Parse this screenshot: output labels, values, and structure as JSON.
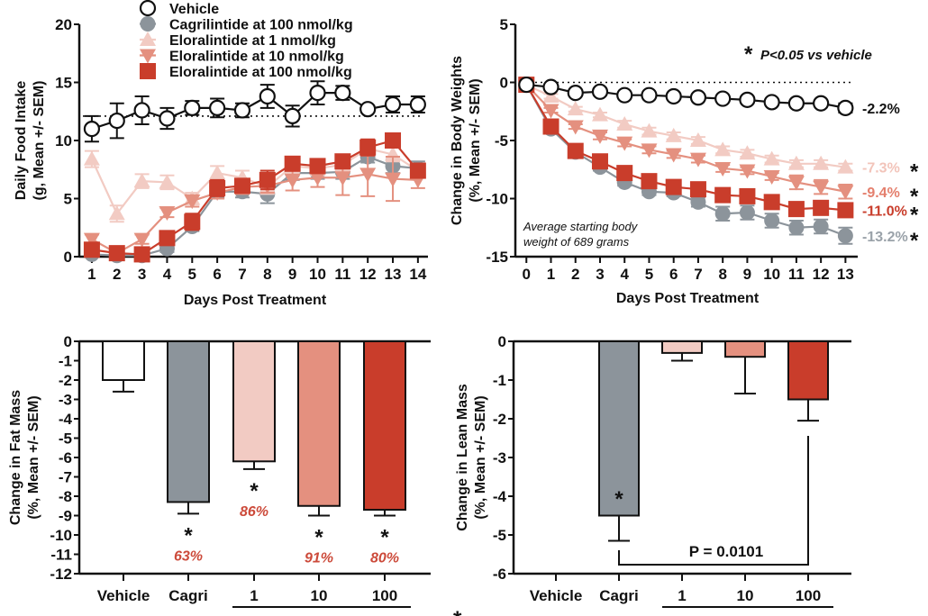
{
  "colors": {
    "vehicle": "#ffffff",
    "cagri": "#8c949b",
    "elo1": "#f2cbc3",
    "elo10": "#e4907f",
    "elo100": "#c93d2b",
    "axis": "#111111",
    "pct_text": "#cc4a3a"
  },
  "legend": [
    {
      "key": "vehicle",
      "label": "Vehicle",
      "marker": "circle-open"
    },
    {
      "key": "cagri",
      "label": "Cagrilintide at 100 nmol/kg",
      "marker": "circle"
    },
    {
      "key": "elo1",
      "label": "Eloralintide at 1 nmol/kg",
      "marker": "triangle-up"
    },
    {
      "key": "elo10",
      "label": "Eloralintide at 10 nmol/kg",
      "marker": "triangle-down"
    },
    {
      "key": "elo100",
      "label": "Eloralintide at 100 nmol/kg",
      "marker": "square"
    }
  ],
  "chart_data": [
    {
      "id": "food",
      "type": "line",
      "title": "",
      "xlabel": "Days Post Treatment",
      "ylabel_line1": "Daily Food Intake",
      "ylabel_line2": "(g, Mean +/- SEM)",
      "x": [
        1,
        2,
        3,
        4,
        5,
        6,
        7,
        8,
        9,
        10,
        11,
        12,
        13,
        14
      ],
      "xlim": [
        0.5,
        14.4
      ],
      "ylim": [
        0,
        20
      ],
      "yticks": [
        0,
        5,
        10,
        15,
        20
      ],
      "reference_line": 12.1,
      "series": [
        {
          "key": "cagri",
          "name": "Cagrilintide at 100 nmol/kg",
          "values": [
            0.2,
            0.1,
            0.1,
            0.7,
            2.6,
            5.6,
            5.6,
            5.4,
            7.2,
            7.2,
            7.3,
            8.6,
            7.8,
            7.6
          ],
          "err": [
            0.2,
            0.2,
            0.2,
            0.3,
            0.4,
            0.5,
            0.5,
            0.8,
            0.6,
            0.5,
            0.6,
            0.5,
            0.6,
            0.6
          ]
        },
        {
          "key": "elo1",
          "name": "Eloralintide at 1 nmol/kg",
          "values": [
            8.4,
            3.7,
            6.5,
            6.4,
            5.0,
            7.2,
            6.8,
            6.0,
            7.8,
            7.6,
            7.9,
            9.3,
            8.8,
            7.4
          ],
          "err": [
            0.7,
            0.7,
            0.6,
            0.6,
            0.5,
            0.6,
            0.6,
            0.6,
            0.6,
            0.6,
            0.6,
            0.6,
            0.6,
            0.6
          ]
        },
        {
          "key": "elo10",
          "name": "Eloralintide at 10 nmol/kg",
          "values": [
            1.5,
            0.3,
            1.5,
            3.8,
            4.8,
            5.5,
            6.0,
            6.1,
            6.6,
            6.8,
            6.8,
            7.1,
            6.7,
            6.6
          ],
          "err": [
            0.4,
            0.2,
            0.4,
            0.4,
            0.5,
            0.5,
            0.6,
            0.6,
            0.9,
            0.8,
            1.5,
            1.9,
            1.9,
            0.7
          ]
        },
        {
          "key": "elo100",
          "name": "Eloralintide at 100 nmol/kg",
          "values": [
            0.6,
            0.3,
            0.2,
            1.6,
            3.0,
            5.9,
            6.1,
            6.6,
            8.0,
            7.8,
            8.2,
            9.4,
            10.0,
            7.4
          ],
          "err": [
            0.3,
            0.2,
            0.2,
            0.4,
            0.7,
            0.7,
            0.5,
            0.8,
            0.6,
            0.5,
            0.6,
            0.7,
            0.6,
            0.6
          ]
        },
        {
          "key": "vehicle",
          "name": "Vehicle",
          "values": [
            11.0,
            11.7,
            12.6,
            11.9,
            12.8,
            12.8,
            12.6,
            13.8,
            12.1,
            14.1,
            14.1,
            12.7,
            13.1,
            13.1
          ],
          "err": [
            1.1,
            1.5,
            1.2,
            0.9,
            0.6,
            0.8,
            0.6,
            1.0,
            0.9,
            1.0,
            0.6,
            0.3,
            0.7,
            0.7
          ]
        }
      ]
    },
    {
      "id": "bw",
      "type": "line",
      "title": "",
      "xlabel": "Days Post Treatment",
      "ylabel_line1": "Change in Body Weights",
      "ylabel_line2": "(%, Mean +/- SEM)",
      "x": [
        0,
        1,
        2,
        3,
        4,
        5,
        6,
        7,
        8,
        9,
        10,
        11,
        12,
        13
      ],
      "xlim": [
        -0.45,
        13.5
      ],
      "ylim": [
        -15,
        5
      ],
      "yticks": [
        -15,
        -10,
        -5,
        0,
        5
      ],
      "reference_line": 0,
      "annotation_significance": "P<0.05 vs vehicle",
      "annotation_note_line1": "Average starting body",
      "annotation_note_line2": "weight of 689 grams",
      "end_labels": [
        {
          "key": "vehicle",
          "text": "-2.2%",
          "star": false,
          "color": "#111111"
        },
        {
          "key": "elo1",
          "text": "-7.3%",
          "star": true,
          "color": "#f2c4ba"
        },
        {
          "key": "elo10",
          "text": "-9.4%",
          "star": true,
          "color": "#e47f6d"
        },
        {
          "key": "elo100",
          "text": "-11.0%",
          "star": true,
          "color": "#c93d2b"
        },
        {
          "key": "cagri",
          "text": "-13.2%",
          "star": true,
          "color": "#9aa2a9"
        }
      ],
      "series": [
        {
          "key": "cagri",
          "name": "Cagrilintide at 100 nmol/kg",
          "values": [
            -0.2,
            -4.0,
            -6.0,
            -7.3,
            -8.6,
            -9.4,
            -9.5,
            -10.3,
            -11.3,
            -11.2,
            -11.9,
            -12.5,
            -12.4,
            -13.2
          ],
          "err": [
            0,
            0.2,
            0.2,
            0.3,
            0.3,
            0.3,
            0.3,
            0.4,
            0.6,
            0.6,
            0.6,
            0.6,
            0.6,
            0.7
          ]
        },
        {
          "key": "elo1",
          "name": "Eloralintide at 1 nmol/kg",
          "values": [
            -0.2,
            -1.2,
            -2.3,
            -2.8,
            -3.6,
            -4.2,
            -4.6,
            -5.0,
            -5.8,
            -6.1,
            -6.6,
            -7.0,
            -7.0,
            -7.3
          ],
          "err": [
            0,
            0.2,
            0.2,
            0.2,
            0.3,
            0.3,
            0.3,
            0.3,
            0.3,
            0.3,
            0.3,
            0.3,
            0.3,
            0.3
          ]
        },
        {
          "key": "elo10",
          "name": "Eloralintide at 10 nmol/kg",
          "values": [
            -0.2,
            -2.4,
            -3.8,
            -4.6,
            -5.2,
            -5.8,
            -6.2,
            -6.6,
            -7.4,
            -7.6,
            -8.1,
            -8.6,
            -9.0,
            -9.4
          ],
          "err": [
            0,
            0.2,
            0.2,
            0.3,
            0.3,
            0.3,
            0.3,
            0.3,
            0.3,
            0.3,
            0.3,
            0.6,
            0.6,
            0.6
          ]
        },
        {
          "key": "elo100",
          "name": "Eloralintide at 100 nmol/kg",
          "values": [
            -0.2,
            -3.8,
            -5.9,
            -6.8,
            -7.8,
            -8.5,
            -9.0,
            -9.2,
            -9.7,
            -9.8,
            -10.3,
            -10.9,
            -10.8,
            -11.0
          ],
          "err": [
            0,
            0.2,
            0.2,
            0.2,
            0.2,
            0.2,
            0.2,
            0.2,
            0.2,
            0.2,
            0.2,
            0.3,
            0.3,
            0.3
          ]
        },
        {
          "key": "vehicle",
          "name": "Vehicle",
          "values": [
            -0.2,
            -0.4,
            -0.9,
            -0.8,
            -1.1,
            -1.1,
            -1.2,
            -1.3,
            -1.4,
            -1.5,
            -1.7,
            -1.8,
            -1.8,
            -2.2
          ],
          "err": [
            0,
            0.1,
            0.1,
            0.1,
            0.1,
            0.1,
            0.1,
            0.1,
            0.1,
            0.1,
            0.1,
            0.1,
            0.1,
            0.4
          ]
        }
      ]
    },
    {
      "id": "fat",
      "type": "bar",
      "title": "",
      "xlabel": "",
      "ylabel_line1": "Change in Fat Mass",
      "ylabel_line2": "(%, Mean +/- SEM)",
      "categories": [
        "Vehicle",
        "Cagri",
        "1",
        "10",
        "100"
      ],
      "keys": [
        "vehicle",
        "cagri",
        "elo1",
        "elo10",
        "elo100"
      ],
      "values": [
        -2.0,
        -8.3,
        -6.2,
        -8.5,
        -8.7
      ],
      "err": [
        0.6,
        0.6,
        0.4,
        0.5,
        0.3
      ],
      "significant": [
        false,
        true,
        true,
        true,
        true
      ],
      "pct_labels": [
        "",
        "63%",
        "86%",
        "91%",
        "80%"
      ],
      "ylim": [
        -12,
        0
      ],
      "yticks": [
        0,
        -1,
        -2,
        -3,
        -4,
        -5,
        -6,
        -7,
        -8,
        -9,
        -10,
        -11,
        -12
      ]
    },
    {
      "id": "lean",
      "type": "bar",
      "title": "",
      "xlabel": "",
      "ylabel_line1": "Change in Lean Mass",
      "ylabel_line2": "(%, Mean +/- SEM)",
      "categories": [
        "Vehicle",
        "Cagri",
        "1",
        "10",
        "100"
      ],
      "keys": [
        "vehicle",
        "cagri",
        "elo1",
        "elo10",
        "elo100"
      ],
      "values": [
        0.0,
        -4.5,
        -0.3,
        -0.4,
        -1.5
      ],
      "err": [
        0.0,
        0.65,
        0.2,
        0.95,
        0.55
      ],
      "significant": [
        false,
        true,
        false,
        false,
        false
      ],
      "ylim": [
        -6,
        0
      ],
      "yticks": [
        0,
        -1,
        -2,
        -3,
        -4,
        -5,
        -6
      ],
      "comparison": {
        "from": "Cagri",
        "to": "100",
        "label": "P = 0.0101"
      }
    }
  ],
  "footer": {
    "star": "*"
  }
}
